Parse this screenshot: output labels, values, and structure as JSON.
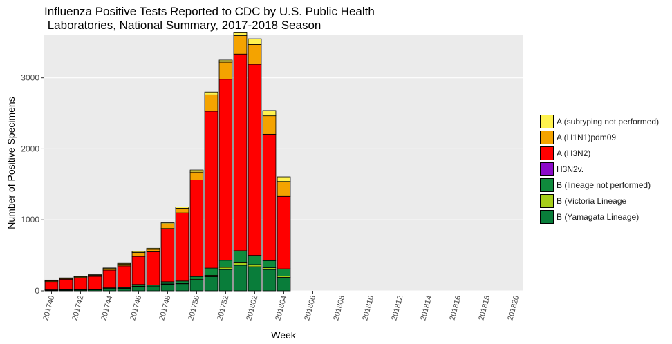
{
  "chart_data": {
    "type": "bar",
    "stacked": true,
    "title": "Influenza Positive Tests Reported to CDC by U.S. Public Health\n Laboratories, National Summary, 2017-2018 Season",
    "xlabel": "Week",
    "ylabel": "Number of Positive Specimens",
    "ylim": [
      0,
      3600
    ],
    "yticks": [
      0,
      1000,
      2000,
      3000
    ],
    "categories": [
      "201740",
      "201741",
      "201742",
      "201743",
      "201744",
      "201745",
      "201746",
      "201747",
      "201748",
      "201749",
      "201750",
      "201751",
      "201752",
      "201801",
      "201802",
      "201803",
      "201804",
      "201805",
      "201806",
      "201807",
      "201808",
      "201809",
      "201810",
      "201811",
      "201812",
      "201813",
      "201814",
      "201815",
      "201816",
      "201817",
      "201818",
      "201819",
      "201820"
    ],
    "xtick_labels": [
      "201740",
      "201742",
      "201744",
      "201746",
      "201748",
      "201750",
      "201752",
      "201802",
      "201804",
      "201806",
      "201808",
      "201810",
      "201812",
      "201814",
      "201816",
      "201818",
      "201820"
    ],
    "legend_position": "right",
    "series": [
      {
        "name": "B (Yamagata Lineage)",
        "color": "#097D3A",
        "values": [
          8,
          10,
          12,
          15,
          30,
          35,
          60,
          55,
          90,
          100,
          150,
          200,
          300,
          360,
          340,
          300,
          190,
          0,
          0,
          0,
          0,
          0,
          0,
          0,
          0,
          0,
          0,
          0,
          0,
          0,
          0,
          0,
          0
        ]
      },
      {
        "name": "B (Victoria Lineage",
        "color": "#A6CE1A",
        "values": [
          1,
          1,
          1,
          1,
          2,
          2,
          5,
          5,
          8,
          8,
          12,
          20,
          30,
          35,
          30,
          25,
          20,
          0,
          0,
          0,
          0,
          0,
          0,
          0,
          0,
          0,
          0,
          0,
          0,
          0,
          0,
          0,
          0
        ]
      },
      {
        "name": "B (lineage not performed)",
        "color": "#0F8A3C",
        "values": [
          5,
          5,
          6,
          8,
          10,
          10,
          25,
          20,
          30,
          30,
          40,
          100,
          100,
          170,
          130,
          100,
          100,
          0,
          0,
          0,
          0,
          0,
          0,
          0,
          0,
          0,
          0,
          0,
          0,
          0,
          0,
          0,
          0
        ]
      },
      {
        "name": "H3N2v.",
        "color": "#8B0AC9",
        "values": [
          0,
          0,
          0,
          0,
          0,
          0,
          0,
          0,
          0,
          0,
          0,
          0,
          0,
          0,
          0,
          0,
          0,
          0,
          0,
          0,
          0,
          0,
          0,
          0,
          0,
          0,
          0,
          0,
          0,
          0,
          0,
          0,
          0
        ]
      },
      {
        "name": "A (H3N2)",
        "color": "#FF0000",
        "values": [
          116,
          147,
          165,
          180,
          250,
          305,
          395,
          470,
          750,
          960,
          1360,
          2210,
          2550,
          2770,
          2690,
          1780,
          1020,
          0,
          0,
          0,
          0,
          0,
          0,
          0,
          0,
          0,
          0,
          0,
          0,
          0,
          0,
          0,
          0
        ]
      },
      {
        "name": "A (H1N1)pdm09",
        "color": "#F4A300",
        "values": [
          12,
          10,
          12,
          15,
          20,
          25,
          55,
          35,
          65,
          65,
          110,
          230,
          240,
          260,
          280,
          260,
          210,
          0,
          0,
          0,
          0,
          0,
          0,
          0,
          0,
          0,
          0,
          0,
          0,
          0,
          0,
          0,
          0
        ]
      },
      {
        "name": "A (subtyping not performed)",
        "color": "#FFF24F",
        "values": [
          10,
          10,
          9,
          9,
          10,
          10,
          15,
          15,
          15,
          20,
          30,
          40,
          30,
          40,
          80,
          75,
          65,
          0,
          0,
          0,
          0,
          0,
          0,
          0,
          0,
          0,
          0,
          0,
          0,
          0,
          0,
          0,
          0
        ]
      }
    ]
  }
}
